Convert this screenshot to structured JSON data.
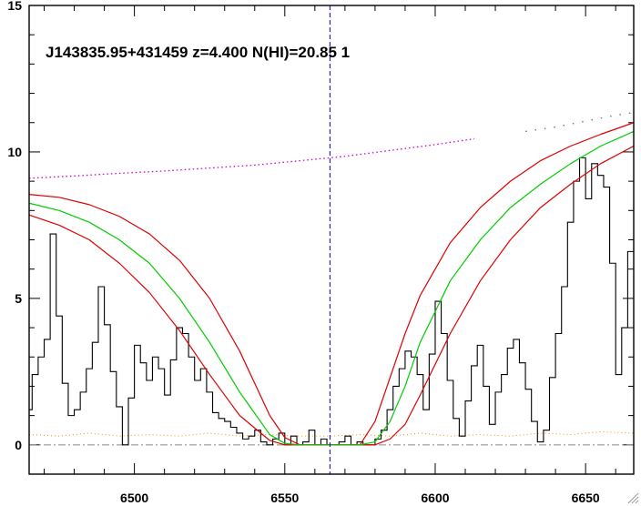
{
  "chart_data": {
    "type": "line",
    "title": "J143835.95+431459 z=4.400 N(HI)=20.85 1",
    "xlabel": "",
    "ylabel": "",
    "xlim": [
      6465,
      6666
    ],
    "ylim": [
      -1,
      15
    ],
    "xticks": [
      6500,
      6550,
      6600,
      6650
    ],
    "yticks": [
      0,
      5,
      10,
      15
    ],
    "grid": false,
    "center_line_x": 6565,
    "zero_level": 0,
    "colors": {
      "spectrum": "#000000",
      "dla_fit": "#00cc00",
      "dla_bounds": "#dd0000",
      "continuum": "#cc00cc",
      "error": "#ff8800",
      "center": "#0000cc",
      "zero": "#888888"
    },
    "spectrum": {
      "x": [
        6465,
        6467,
        6469,
        6471,
        6473,
        6475,
        6477,
        6479,
        6481,
        6483,
        6485,
        6487,
        6489,
        6491,
        6493,
        6495,
        6497,
        6499,
        6501,
        6503,
        6505,
        6507,
        6509,
        6511,
        6513,
        6515,
        6517,
        6519,
        6521,
        6523,
        6525,
        6527,
        6529,
        6531,
        6533,
        6535,
        6537,
        6539,
        6541,
        6543,
        6545,
        6547,
        6549,
        6551,
        6553,
        6555,
        6557,
        6559,
        6561,
        6563,
        6565,
        6567,
        6569,
        6571,
        6573,
        6575,
        6577,
        6579,
        6581,
        6583,
        6585,
        6587,
        6589,
        6591,
        6593,
        6595,
        6597,
        6599,
        6601,
        6603,
        6605,
        6607,
        6609,
        6611,
        6613,
        6615,
        6617,
        6619,
        6621,
        6623,
        6625,
        6627,
        6629,
        6631,
        6633,
        6635,
        6637,
        6639,
        6641,
        6643,
        6645,
        6647,
        6649,
        6651,
        6653,
        6655,
        6657,
        6659,
        6661,
        6663,
        6665
      ],
      "y": [
        1.2,
        2.4,
        3.0,
        3.6,
        7.2,
        4.4,
        2.1,
        1.0,
        1.2,
        1.8,
        2.6,
        3.5,
        5.4,
        4.1,
        2.5,
        1.3,
        0.0,
        1.6,
        3.4,
        2.8,
        2.2,
        3.0,
        2.6,
        1.7,
        2.9,
        4.0,
        3.8,
        3.0,
        2.2,
        2.6,
        1.8,
        1.1,
        0.9,
        0.8,
        0.6,
        0.4,
        0.2,
        0.3,
        0.5,
        0.1,
        0.0,
        0.2,
        0.4,
        0.0,
        0.3,
        0.0,
        0.1,
        0.5,
        0.0,
        0.2,
        0.0,
        0.0,
        0.1,
        0.3,
        0.0,
        0.1,
        0.0,
        0.0,
        0.2,
        0.5,
        1.2,
        2.0,
        2.6,
        3.2,
        3.0,
        2.4,
        1.2,
        3.1,
        4.9,
        3.8,
        2.2,
        0.9,
        0.3,
        1.5,
        2.7,
        3.4,
        2.0,
        0.7,
        1.8,
        2.4,
        3.3,
        3.6,
        2.8,
        1.9,
        0.8,
        0.1,
        0.5,
        2.3,
        3.8,
        5.4,
        7.6,
        9.0,
        9.8,
        8.4,
        9.6,
        9.2,
        8.8,
        6.2,
        2.4,
        4.0,
        6.6
      ]
    },
    "dla_fit": {
      "x": [
        6465,
        6475,
        6485,
        6495,
        6505,
        6515,
        6525,
        6535,
        6545,
        6550,
        6555,
        6560,
        6565,
        6570,
        6575,
        6580,
        6585,
        6590,
        6595,
        6605,
        6615,
        6625,
        6635,
        6645,
        6655,
        6666
      ],
      "y": [
        8.25,
        8.0,
        7.6,
        7.0,
        6.2,
        5.0,
        3.5,
        1.8,
        0.35,
        0.05,
        0.0,
        0.0,
        0.0,
        0.0,
        0.0,
        0.1,
        0.8,
        2.0,
        3.5,
        5.6,
        7.0,
        8.1,
        8.9,
        9.6,
        10.2,
        10.7
      ]
    },
    "dla_upper": {
      "x": [
        6465,
        6475,
        6485,
        6495,
        6505,
        6515,
        6525,
        6535,
        6545,
        6550,
        6555,
        6560,
        6565,
        6570,
        6575,
        6580,
        6585,
        6590,
        6595,
        6605,
        6615,
        6625,
        6635,
        6645,
        6655,
        6666
      ],
      "y": [
        8.55,
        8.45,
        8.2,
        7.8,
        7.2,
        6.3,
        5.0,
        3.2,
        1.0,
        0.25,
        0.0,
        0.0,
        0.0,
        0.0,
        0.0,
        0.8,
        2.3,
        3.8,
        5.1,
        6.9,
        8.1,
        9.0,
        9.7,
        10.2,
        10.6,
        11.0
      ]
    },
    "dla_lower": {
      "x": [
        6465,
        6475,
        6485,
        6495,
        6505,
        6515,
        6525,
        6535,
        6545,
        6550,
        6555,
        6560,
        6565,
        6570,
        6575,
        6580,
        6585,
        6590,
        6595,
        6605,
        6615,
        6625,
        6635,
        6645,
        6655,
        6666
      ],
      "y": [
        7.85,
        7.5,
        7.0,
        6.2,
        5.2,
        3.9,
        2.4,
        1.0,
        0.15,
        0.0,
        0.0,
        0.0,
        0.0,
        0.0,
        0.0,
        0.0,
        0.2,
        0.7,
        1.7,
        3.8,
        5.6,
        7.0,
        8.1,
        8.9,
        9.6,
        10.2
      ]
    },
    "continuum": {
      "x": [
        6465,
        6480,
        6495,
        6510,
        6525,
        6540,
        6555,
        6570,
        6585,
        6600,
        6613,
        6620,
        6630,
        6640,
        6650,
        6660,
        6666
      ],
      "y": [
        9.1,
        9.18,
        9.27,
        9.35,
        9.45,
        9.55,
        9.7,
        9.85,
        10.05,
        10.25,
        10.45,
        10.55,
        10.7,
        10.85,
        11.05,
        11.25,
        11.35
      ]
    },
    "error": {
      "x": [
        6465,
        6475,
        6485,
        6495,
        6505,
        6515,
        6525,
        6535,
        6545,
        6555,
        6565,
        6575,
        6585,
        6595,
        6605,
        6615,
        6625,
        6635,
        6645,
        6655,
        6666
      ],
      "y": [
        0.35,
        0.3,
        0.4,
        0.3,
        0.35,
        0.3,
        0.4,
        0.3,
        0.35,
        0.3,
        0.3,
        0.35,
        0.3,
        0.4,
        0.3,
        0.35,
        0.3,
        0.4,
        0.35,
        0.45,
        0.4
      ]
    }
  }
}
